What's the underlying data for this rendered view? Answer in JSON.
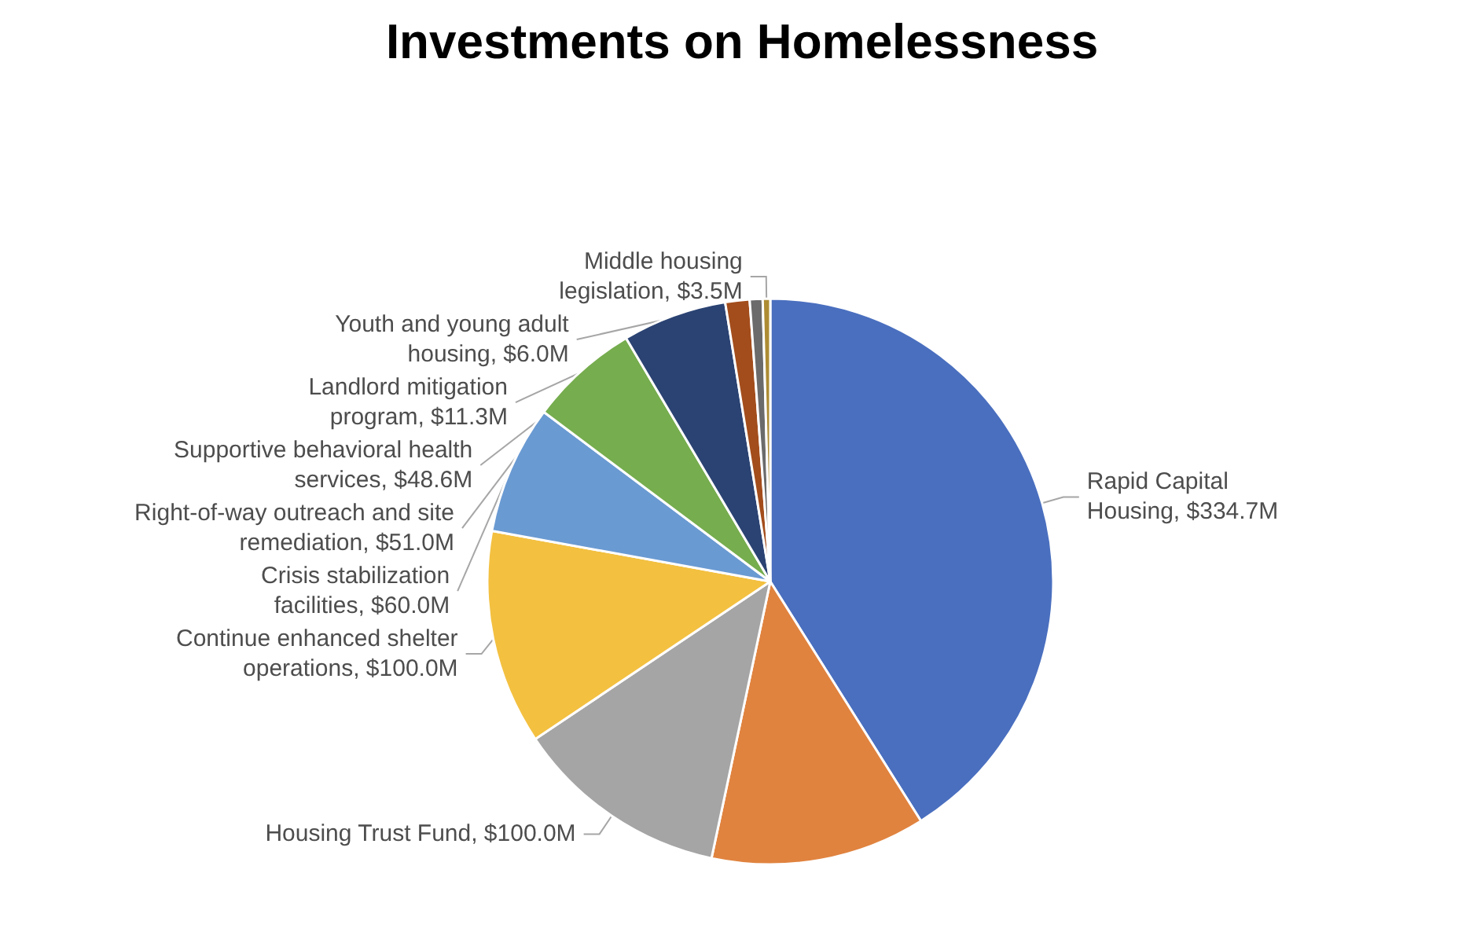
{
  "chart_data": {
    "type": "pie",
    "title": "Investments on Homelessness",
    "categories": [
      "Rapid Capital Housing",
      null,
      "Housing Trust Fund",
      "Continue enhanced shelter operations",
      "Crisis stabilization facilities",
      "Right-of-way outreach and site remediation",
      "Supportive behavioral health services",
      "Landlord mitigation program",
      "Youth and young adult housing",
      "Middle housing legislation"
    ],
    "values": [
      334.7,
      100,
      100,
      100,
      60,
      51,
      48.6,
      11.3,
      6.0,
      3.5
    ],
    "value_labels": [
      "$334.7M",
      null,
      "$100.0M",
      "$100.0M",
      "$60.0M",
      "$51.0M",
      "$48.6M",
      "$11.3M",
      "$6.0M",
      "$3.5M"
    ],
    "colors": [
      "#4a6fbf",
      "#e0833f",
      "#a5a5a5",
      "#f3c040",
      "#6a9ad2",
      "#76ad4e",
      "#2b4373",
      "#a34d1c",
      "#6b6b6b",
      "#ad8c34"
    ]
  }
}
